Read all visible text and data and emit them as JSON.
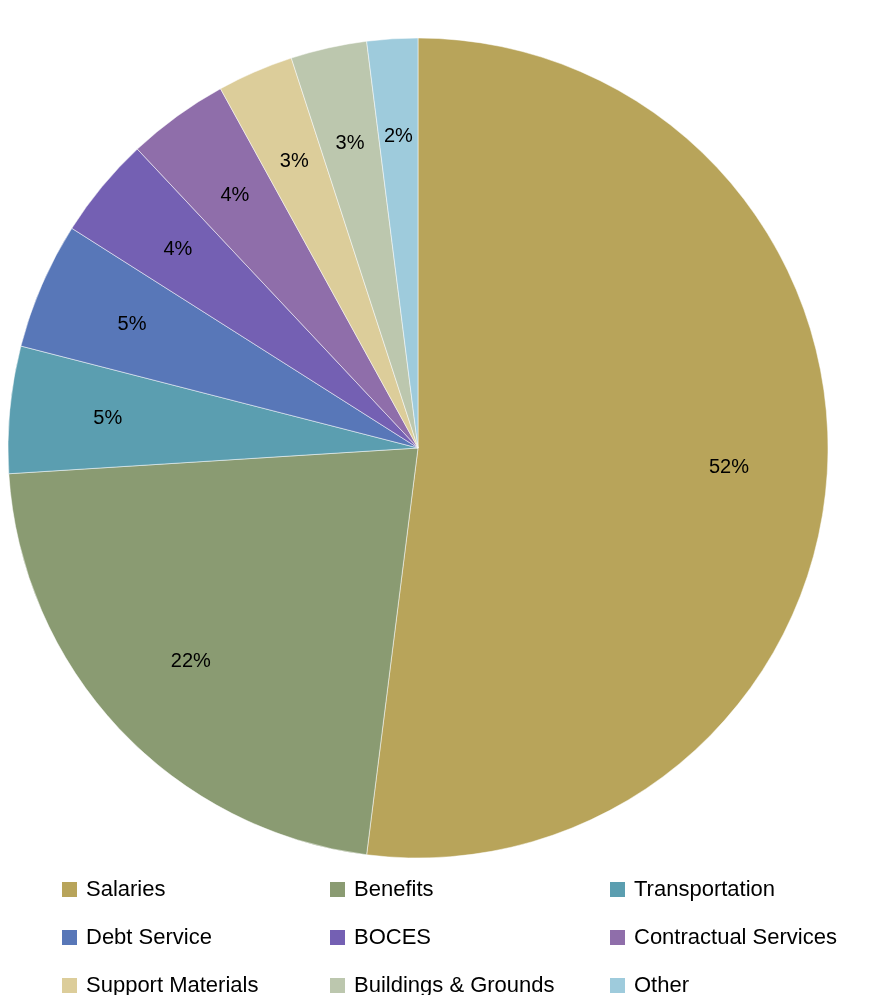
{
  "chart_data": {
    "type": "pie",
    "categories": [
      "Salaries",
      "Benefits",
      "Transportation",
      "Debt Service",
      "BOCES",
      "Contractual Services",
      "Support Materials",
      "Buildings & Grounds",
      "Other"
    ],
    "values": [
      52,
      22,
      5,
      5,
      4,
      4,
      3,
      3,
      2
    ],
    "colors": [
      "#b8a45a",
      "#8a9b72",
      "#5b9eb0",
      "#5877b8",
      "#7460b3",
      "#8f6eaa",
      "#dccd9a",
      "#bcc7ae",
      "#9ecbdc"
    ],
    "value_labels": [
      "52%",
      "22%",
      "5%",
      "5%",
      "4%",
      "4%",
      "3%",
      "3%",
      "2%"
    ],
    "legend": "bottom"
  }
}
